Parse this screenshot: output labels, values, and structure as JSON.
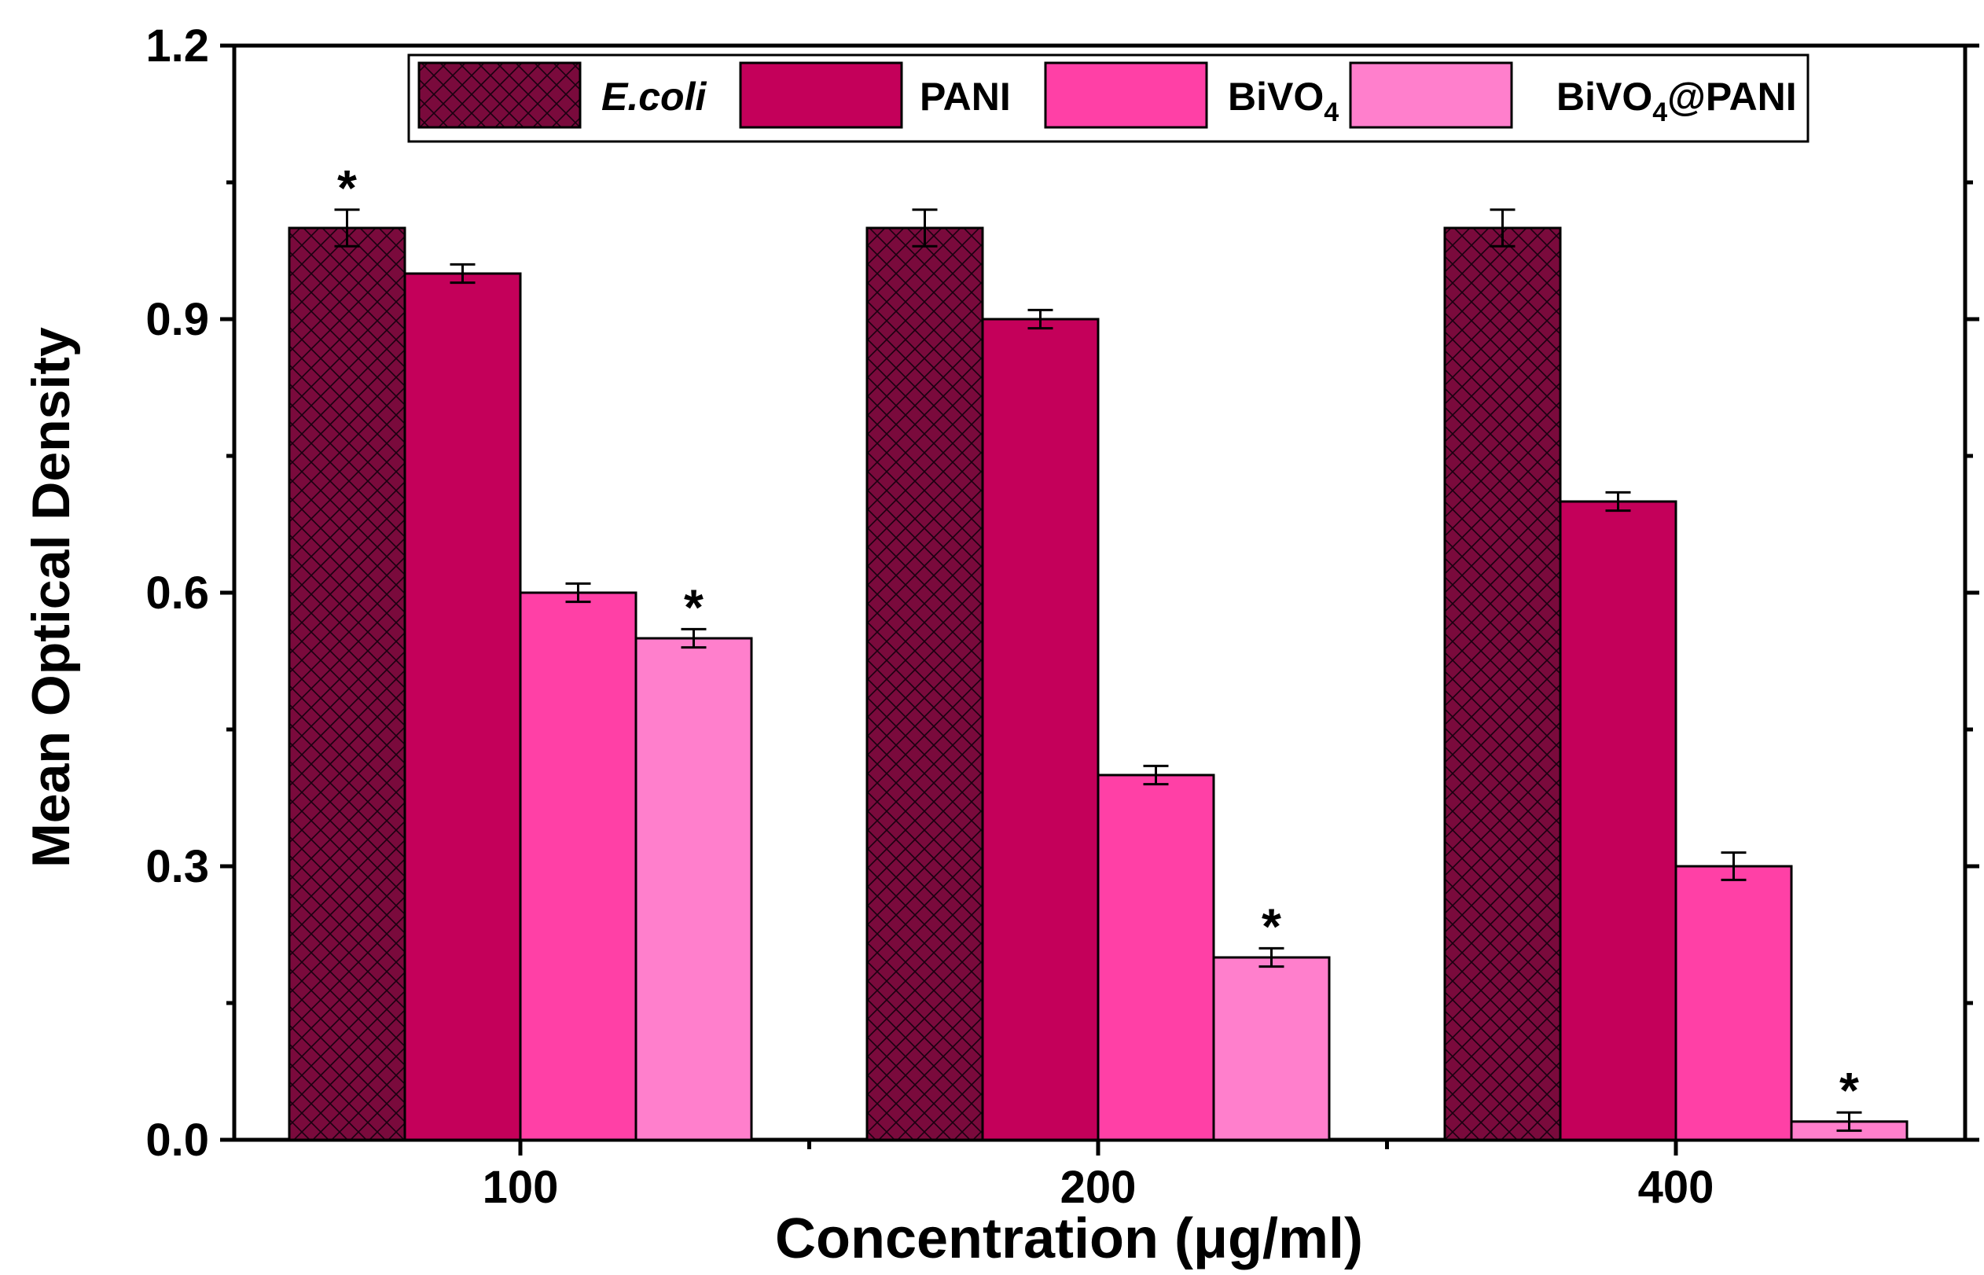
{
  "chart_data": {
    "type": "bar",
    "title": "",
    "xlabel": "Concentration (μg/ml)",
    "ylabel": "Mean Optical Density",
    "categories": [
      "100",
      "200",
      "400"
    ],
    "ylim": [
      0,
      1.2
    ],
    "yticks": [
      "0.0",
      "0.3",
      "0.6",
      "0.9",
      "1.2"
    ],
    "series": [
      {
        "name": "E.coli",
        "label_main": "E.coli",
        "label_sub": "",
        "label_tail": "",
        "italic": true,
        "hatched": true,
        "color": "#7a0a3c",
        "values": [
          1.0,
          1.0,
          1.0
        ],
        "errors": [
          0.02,
          0.02,
          0.02
        ],
        "significant": [
          true,
          false,
          false
        ]
      },
      {
        "name": "PANI",
        "label_main": "PANI",
        "label_sub": "",
        "label_tail": "",
        "italic": false,
        "hatched": false,
        "color": "#c4005a",
        "values": [
          0.95,
          0.9,
          0.7
        ],
        "errors": [
          0.01,
          0.01,
          0.01
        ],
        "significant": [
          false,
          false,
          false
        ]
      },
      {
        "name": "BiVO4",
        "label_main": "BiVO",
        "label_sub": "4",
        "label_tail": "",
        "italic": false,
        "hatched": false,
        "color": "#ff40a6",
        "values": [
          0.6,
          0.4,
          0.3
        ],
        "errors": [
          0.01,
          0.01,
          0.015
        ],
        "significant": [
          false,
          false,
          false
        ]
      },
      {
        "name": "BiVO4@PANI",
        "label_main": "BiVO",
        "label_sub": "4",
        "label_tail": "@PANI",
        "italic": false,
        "hatched": false,
        "color": "#ff7fcc",
        "values": [
          0.55,
          0.2,
          0.02
        ],
        "errors": [
          0.01,
          0.01,
          0.01
        ],
        "significant": [
          true,
          true,
          true
        ]
      }
    ],
    "significance_marker": "*",
    "legend_position": "top-center"
  }
}
